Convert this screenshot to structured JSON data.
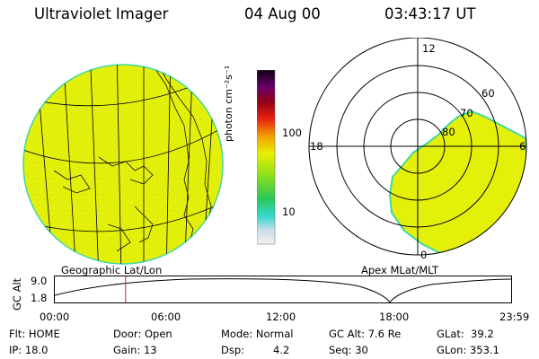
{
  "header": {
    "instrument": "Ultraviolet Imager",
    "date": "04 Aug 00",
    "time": "03:43:17 UT"
  },
  "colorbar": {
    "unit_label": "photon cm⁻²s⁻¹",
    "ticks": [
      "100",
      "10"
    ]
  },
  "geo_panel": {
    "label": "Geographic Lat/Lon"
  },
  "polar_panel": {
    "label": "Apex MLat/MLT",
    "mlt_labels": {
      "top": "12",
      "left": "18",
      "right": "6",
      "bottom": "0"
    },
    "lat_labels": [
      "60",
      "70",
      "80"
    ]
  },
  "altitude_plot": {
    "ylabel": "GC Alt",
    "y_ticks": [
      "9.0",
      "1.8"
    ],
    "x_ticks": [
      "00:00",
      "06:00",
      "12:00",
      "18:00",
      "23:59"
    ],
    "current_time_fraction": 0.155
  },
  "status": {
    "filter": "Flt: HOME",
    "ip": "IP: 18.0",
    "door": "Door: Open",
    "gain": "Gain: 13",
    "mode": "Mode: Normal",
    "dsp_label": "Dsp:",
    "dsp_value": "4.2",
    "gc_alt": "GC Alt: 7.6 Re",
    "seq": "Seq: 30",
    "glat": "GLat:  39.2",
    "glon": "GLon: 353.1"
  },
  "colors": {
    "emission_fill": "#e4f00a",
    "emission_edge": "#3fd8a0",
    "time_marker": "#e02020"
  }
}
